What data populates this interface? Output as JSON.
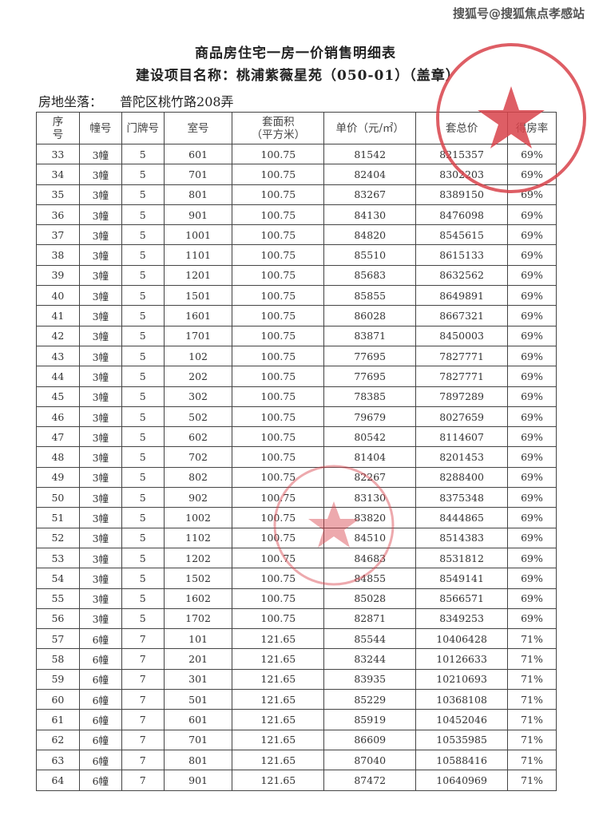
{
  "watermark": "搜狐号@搜狐焦点孝感站",
  "title": "商品房住宅一房一价销售明细表",
  "subtitle": "建设项目名称：桃浦紫薇星苑（050-01）（盖章）",
  "location": {
    "label": "房地坐落：",
    "value": "普陀区桃竹路208弄"
  },
  "stamp_color": "#d9434b",
  "columns": [
    "序号",
    "幢号",
    "门牌号",
    "室号",
    "套面积（平方米）",
    "单价（元/㎡）",
    "套总价",
    "得房率"
  ],
  "column_lines": [
    [
      "序",
      "号"
    ],
    [
      "幢号"
    ],
    [
      "门牌号"
    ],
    [
      "室号"
    ],
    [
      "套面积",
      "（平方米）"
    ],
    [
      "单价",
      "（元/㎡）"
    ],
    [
      "套总价"
    ],
    [
      "得房率"
    ]
  ],
  "rows": [
    [
      "33",
      "3幢",
      "5",
      "601",
      "100.75",
      "81542",
      "8215357",
      "69%"
    ],
    [
      "34",
      "3幢",
      "5",
      "701",
      "100.75",
      "82404",
      "8302203",
      "69%"
    ],
    [
      "35",
      "3幢",
      "5",
      "801",
      "100.75",
      "83267",
      "8389150",
      "69%"
    ],
    [
      "36",
      "3幢",
      "5",
      "901",
      "100.75",
      "84130",
      "8476098",
      "69%"
    ],
    [
      "37",
      "3幢",
      "5",
      "1001",
      "100.75",
      "84820",
      "8545615",
      "69%"
    ],
    [
      "38",
      "3幢",
      "5",
      "1101",
      "100.75",
      "85510",
      "8615133",
      "69%"
    ],
    [
      "39",
      "3幢",
      "5",
      "1201",
      "100.75",
      "85683",
      "8632562",
      "69%"
    ],
    [
      "40",
      "3幢",
      "5",
      "1501",
      "100.75",
      "85855",
      "8649891",
      "69%"
    ],
    [
      "41",
      "3幢",
      "5",
      "1601",
      "100.75",
      "86028",
      "8667321",
      "69%"
    ],
    [
      "42",
      "3幢",
      "5",
      "1701",
      "100.75",
      "83871",
      "8450003",
      "69%"
    ],
    [
      "43",
      "3幢",
      "5",
      "102",
      "100.75",
      "77695",
      "7827771",
      "69%"
    ],
    [
      "44",
      "3幢",
      "5",
      "202",
      "100.75",
      "77695",
      "7827771",
      "69%"
    ],
    [
      "45",
      "3幢",
      "5",
      "302",
      "100.75",
      "78385",
      "7897289",
      "69%"
    ],
    [
      "46",
      "3幢",
      "5",
      "502",
      "100.75",
      "79679",
      "8027659",
      "69%"
    ],
    [
      "47",
      "3幢",
      "5",
      "602",
      "100.75",
      "80542",
      "8114607",
      "69%"
    ],
    [
      "48",
      "3幢",
      "5",
      "702",
      "100.75",
      "81404",
      "8201453",
      "69%"
    ],
    [
      "49",
      "3幢",
      "5",
      "802",
      "100.75",
      "82267",
      "8288400",
      "69%"
    ],
    [
      "50",
      "3幢",
      "5",
      "902",
      "100.75",
      "83130",
      "8375348",
      "69%"
    ],
    [
      "51",
      "3幢",
      "5",
      "1002",
      "100.75",
      "83820",
      "8444865",
      "69%"
    ],
    [
      "52",
      "3幢",
      "5",
      "1102",
      "100.75",
      "84510",
      "8514383",
      "69%"
    ],
    [
      "53",
      "3幢",
      "5",
      "1202",
      "100.75",
      "84683",
      "8531812",
      "69%"
    ],
    [
      "54",
      "3幢",
      "5",
      "1502",
      "100.75",
      "84855",
      "8549141",
      "69%"
    ],
    [
      "55",
      "3幢",
      "5",
      "1602",
      "100.75",
      "85028",
      "8566571",
      "69%"
    ],
    [
      "56",
      "3幢",
      "5",
      "1702",
      "100.75",
      "82871",
      "8349253",
      "69%"
    ],
    [
      "57",
      "6幢",
      "7",
      "101",
      "121.65",
      "85544",
      "10406428",
      "71%"
    ],
    [
      "58",
      "6幢",
      "7",
      "201",
      "121.65",
      "83244",
      "10126633",
      "71%"
    ],
    [
      "59",
      "6幢",
      "7",
      "301",
      "121.65",
      "83935",
      "10210693",
      "71%"
    ],
    [
      "60",
      "6幢",
      "7",
      "501",
      "121.65",
      "85229",
      "10368108",
      "71%"
    ],
    [
      "61",
      "6幢",
      "7",
      "601",
      "121.65",
      "85919",
      "10452046",
      "71%"
    ],
    [
      "62",
      "6幢",
      "7",
      "701",
      "121.65",
      "86609",
      "10535985",
      "71%"
    ],
    [
      "63",
      "6幢",
      "7",
      "801",
      "121.65",
      "87040",
      "10588416",
      "71%"
    ],
    [
      "64",
      "6幢",
      "7",
      "901",
      "121.65",
      "87472",
      "10640969",
      "71%"
    ]
  ]
}
